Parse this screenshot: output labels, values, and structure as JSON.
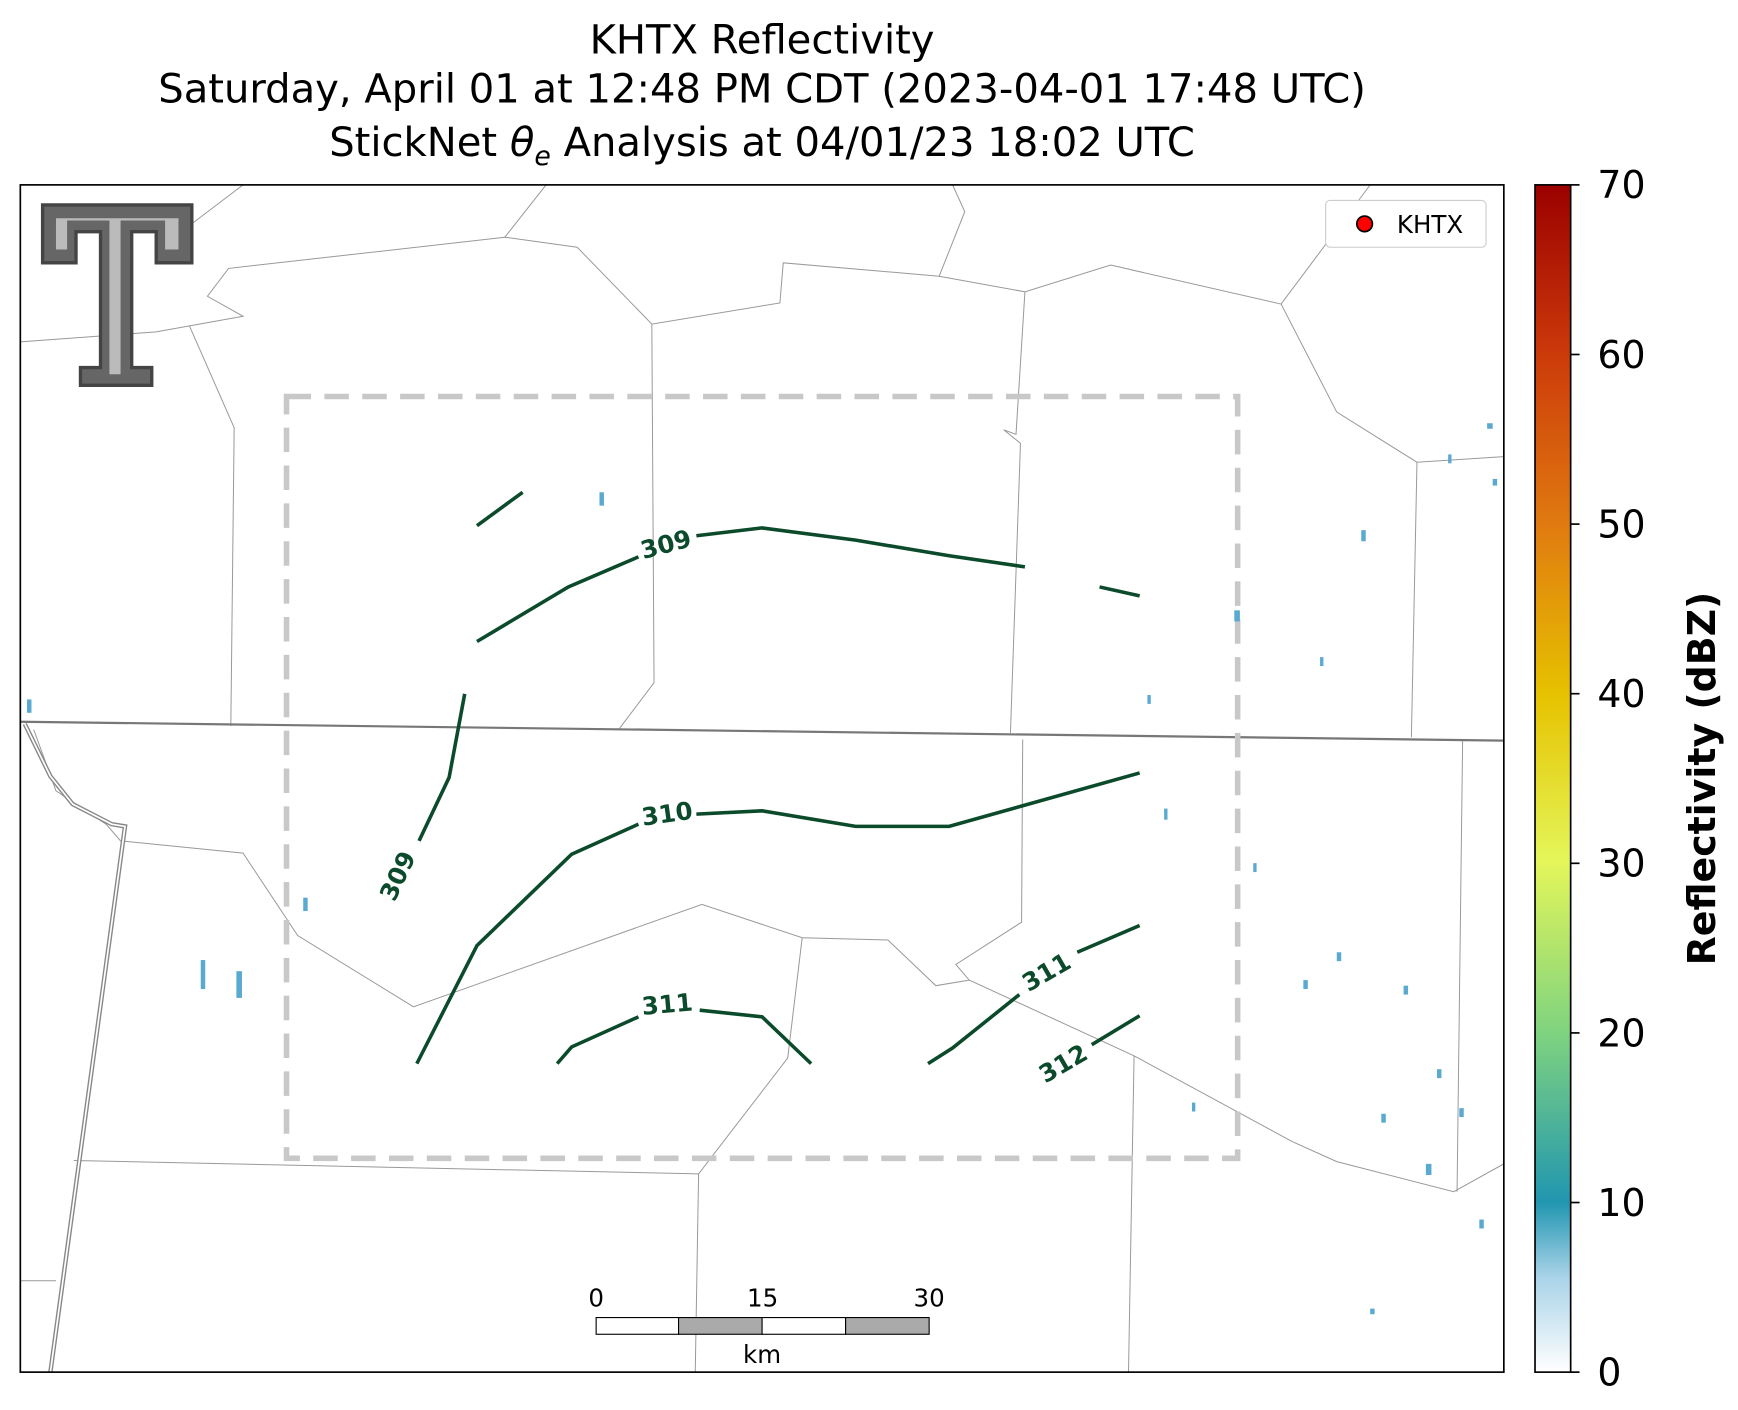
{
  "title": {
    "line1": "KHTX Reflectivity",
    "line2": "Saturday, April 01 at 12:48 PM CDT (2023-04-01 17:48 UTC)",
    "line3": {
      "before": "StickNet ",
      "symbol": "θ",
      "subscript": "e",
      "after": " Analysis at 04/01/23 18:02 UTC"
    }
  },
  "legend": {
    "label": "KHTX",
    "color": "#ff0000"
  },
  "colorbar": {
    "label": "Reflectivity (dBZ)",
    "lim": [
      0,
      70
    ],
    "ticks": [
      0,
      10,
      20,
      30,
      40,
      50,
      60,
      70
    ]
  },
  "contours": [
    {
      "label": 309
    },
    {
      "label": 309
    },
    {
      "label": 310
    },
    {
      "label": 311
    },
    {
      "label": 311
    },
    {
      "label": 312
    }
  ],
  "scale_bar": {
    "ticks": [
      0,
      15,
      30
    ],
    "unit": "km"
  }
}
